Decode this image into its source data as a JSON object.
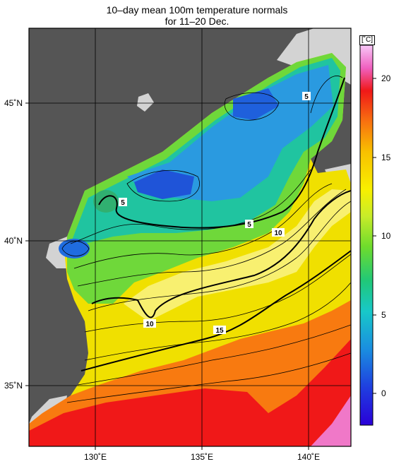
{
  "title": {
    "line1": "10–day mean 100m temperature normals",
    "line2": "for 11–20 Dec."
  },
  "axes": {
    "lat_labels": [
      "45˚N",
      "40˚N",
      "35˚N"
    ],
    "lon_labels": [
      "130˚E",
      "135˚E",
      "140˚E"
    ]
  },
  "colorbar": {
    "unit": "[˚C]",
    "ticks": [
      "20",
      "15",
      "10",
      "5",
      "0"
    ],
    "range": [
      -2,
      22
    ]
  },
  "contour_labels": [
    "5",
    "5",
    "5",
    "10",
    "10",
    "15"
  ],
  "colors": {
    "land": "#555555",
    "nodata": "#d3d3d3"
  }
}
